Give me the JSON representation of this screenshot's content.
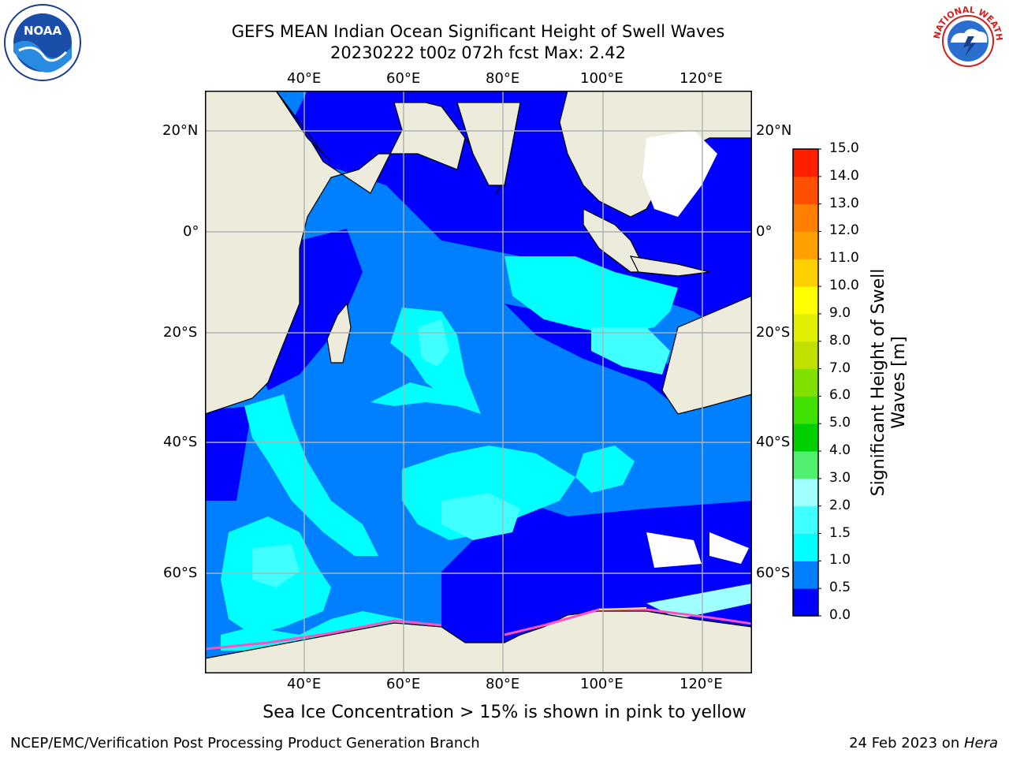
{
  "title": {
    "line1": "GEFS MEAN Indian Ocean Significant Height of Swell Waves",
    "line2": "20230222 t00z 072h fcst   Max: 2.42"
  },
  "map": {
    "lon_ticks": [
      "40°E",
      "60°E",
      "80°E",
      "100°E",
      "120°E"
    ],
    "lat_ticks": [
      "20°N",
      "0°",
      "20°S",
      "40°S",
      "60°S"
    ],
    "lon_range": [
      20,
      130
    ],
    "lat_range": [
      -74,
      28
    ],
    "colors": {
      "land": "#ecebdc",
      "grid": "#b0b0b0",
      "white_ice": "#ffffff"
    },
    "wave_regions_note_colors": [
      "#0000ff",
      "#0080ff",
      "#00ffff",
      "#40ffff",
      "#a0ffff"
    ]
  },
  "colorbar": {
    "title": "Significant Height of Swell Waves [m]",
    "tick_labels": [
      "0.0",
      "0.5",
      "1.0",
      "1.5",
      "2.0",
      "3.0",
      "4.0",
      "5.0",
      "6.0",
      "7.0",
      "8.0",
      "9.0",
      "10.0",
      "11.0",
      "12.0",
      "13.0",
      "14.0",
      "15.0"
    ],
    "colors": [
      "#0000ff",
      "#0080ff",
      "#00ffff",
      "#40ffff",
      "#a0ffff",
      "#50f070",
      "#00d000",
      "#40e000",
      "#80e000",
      "#c0e000",
      "#e0f000",
      "#ffff00",
      "#ffd000",
      "#ffa000",
      "#ff8000",
      "#ff5000",
      "#ff2000",
      "#ff0000"
    ]
  },
  "caption": "Sea Ice Concentration > 15% is shown in pink to yellow",
  "footer": {
    "left": "NCEP/EMC/Verification Post Processing Product Generation Branch",
    "right_date": "24 Feb 2023 on ",
    "right_host": "Hera"
  },
  "logos": {
    "noaa": "NOAA",
    "nws": "NATIONAL WEATHER SERVICE"
  }
}
